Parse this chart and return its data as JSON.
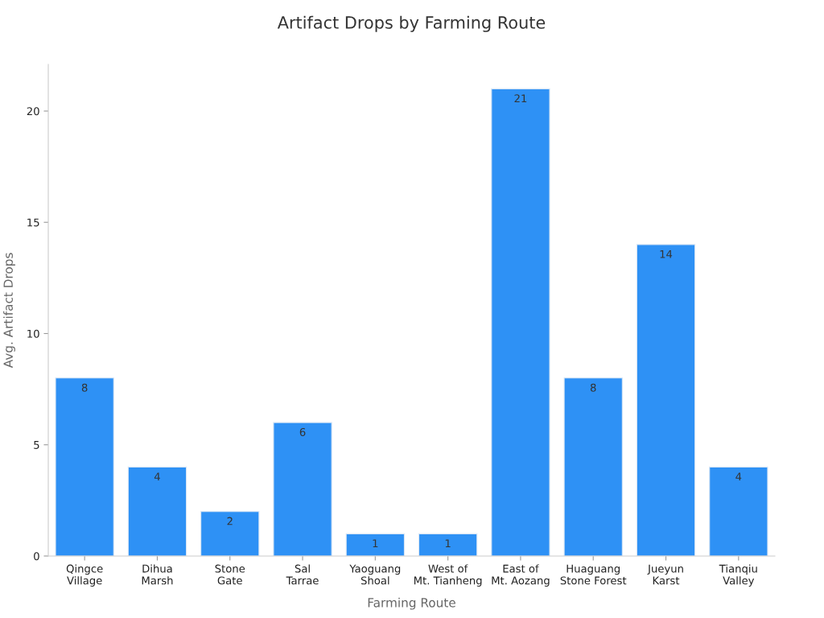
{
  "chart_data": {
    "type": "bar",
    "title": "Artifact Drops by Farming Route",
    "xlabel": "Farming Route",
    "ylabel": "Avg. Artifact Drops",
    "categories": [
      "Qingce\nVillage",
      "Dihua\nMarsh",
      "Stone\nGate",
      "Sal\nTarrae",
      "Yaoguang\nShoal",
      "West of\nMt. Tianheng",
      "East of\nMt. Aozang",
      "Huaguang\nStone Forest",
      "Jueyun\nKarst",
      "Tianqiu\nValley"
    ],
    "values": [
      8,
      4,
      2,
      6,
      1,
      1,
      21,
      8,
      14,
      4
    ],
    "color": "#2e91f5",
    "ylim": [
      0,
      22.1
    ],
    "yticks": [
      0,
      5,
      10,
      15,
      20
    ],
    "grid": false,
    "data_labels": true
  }
}
